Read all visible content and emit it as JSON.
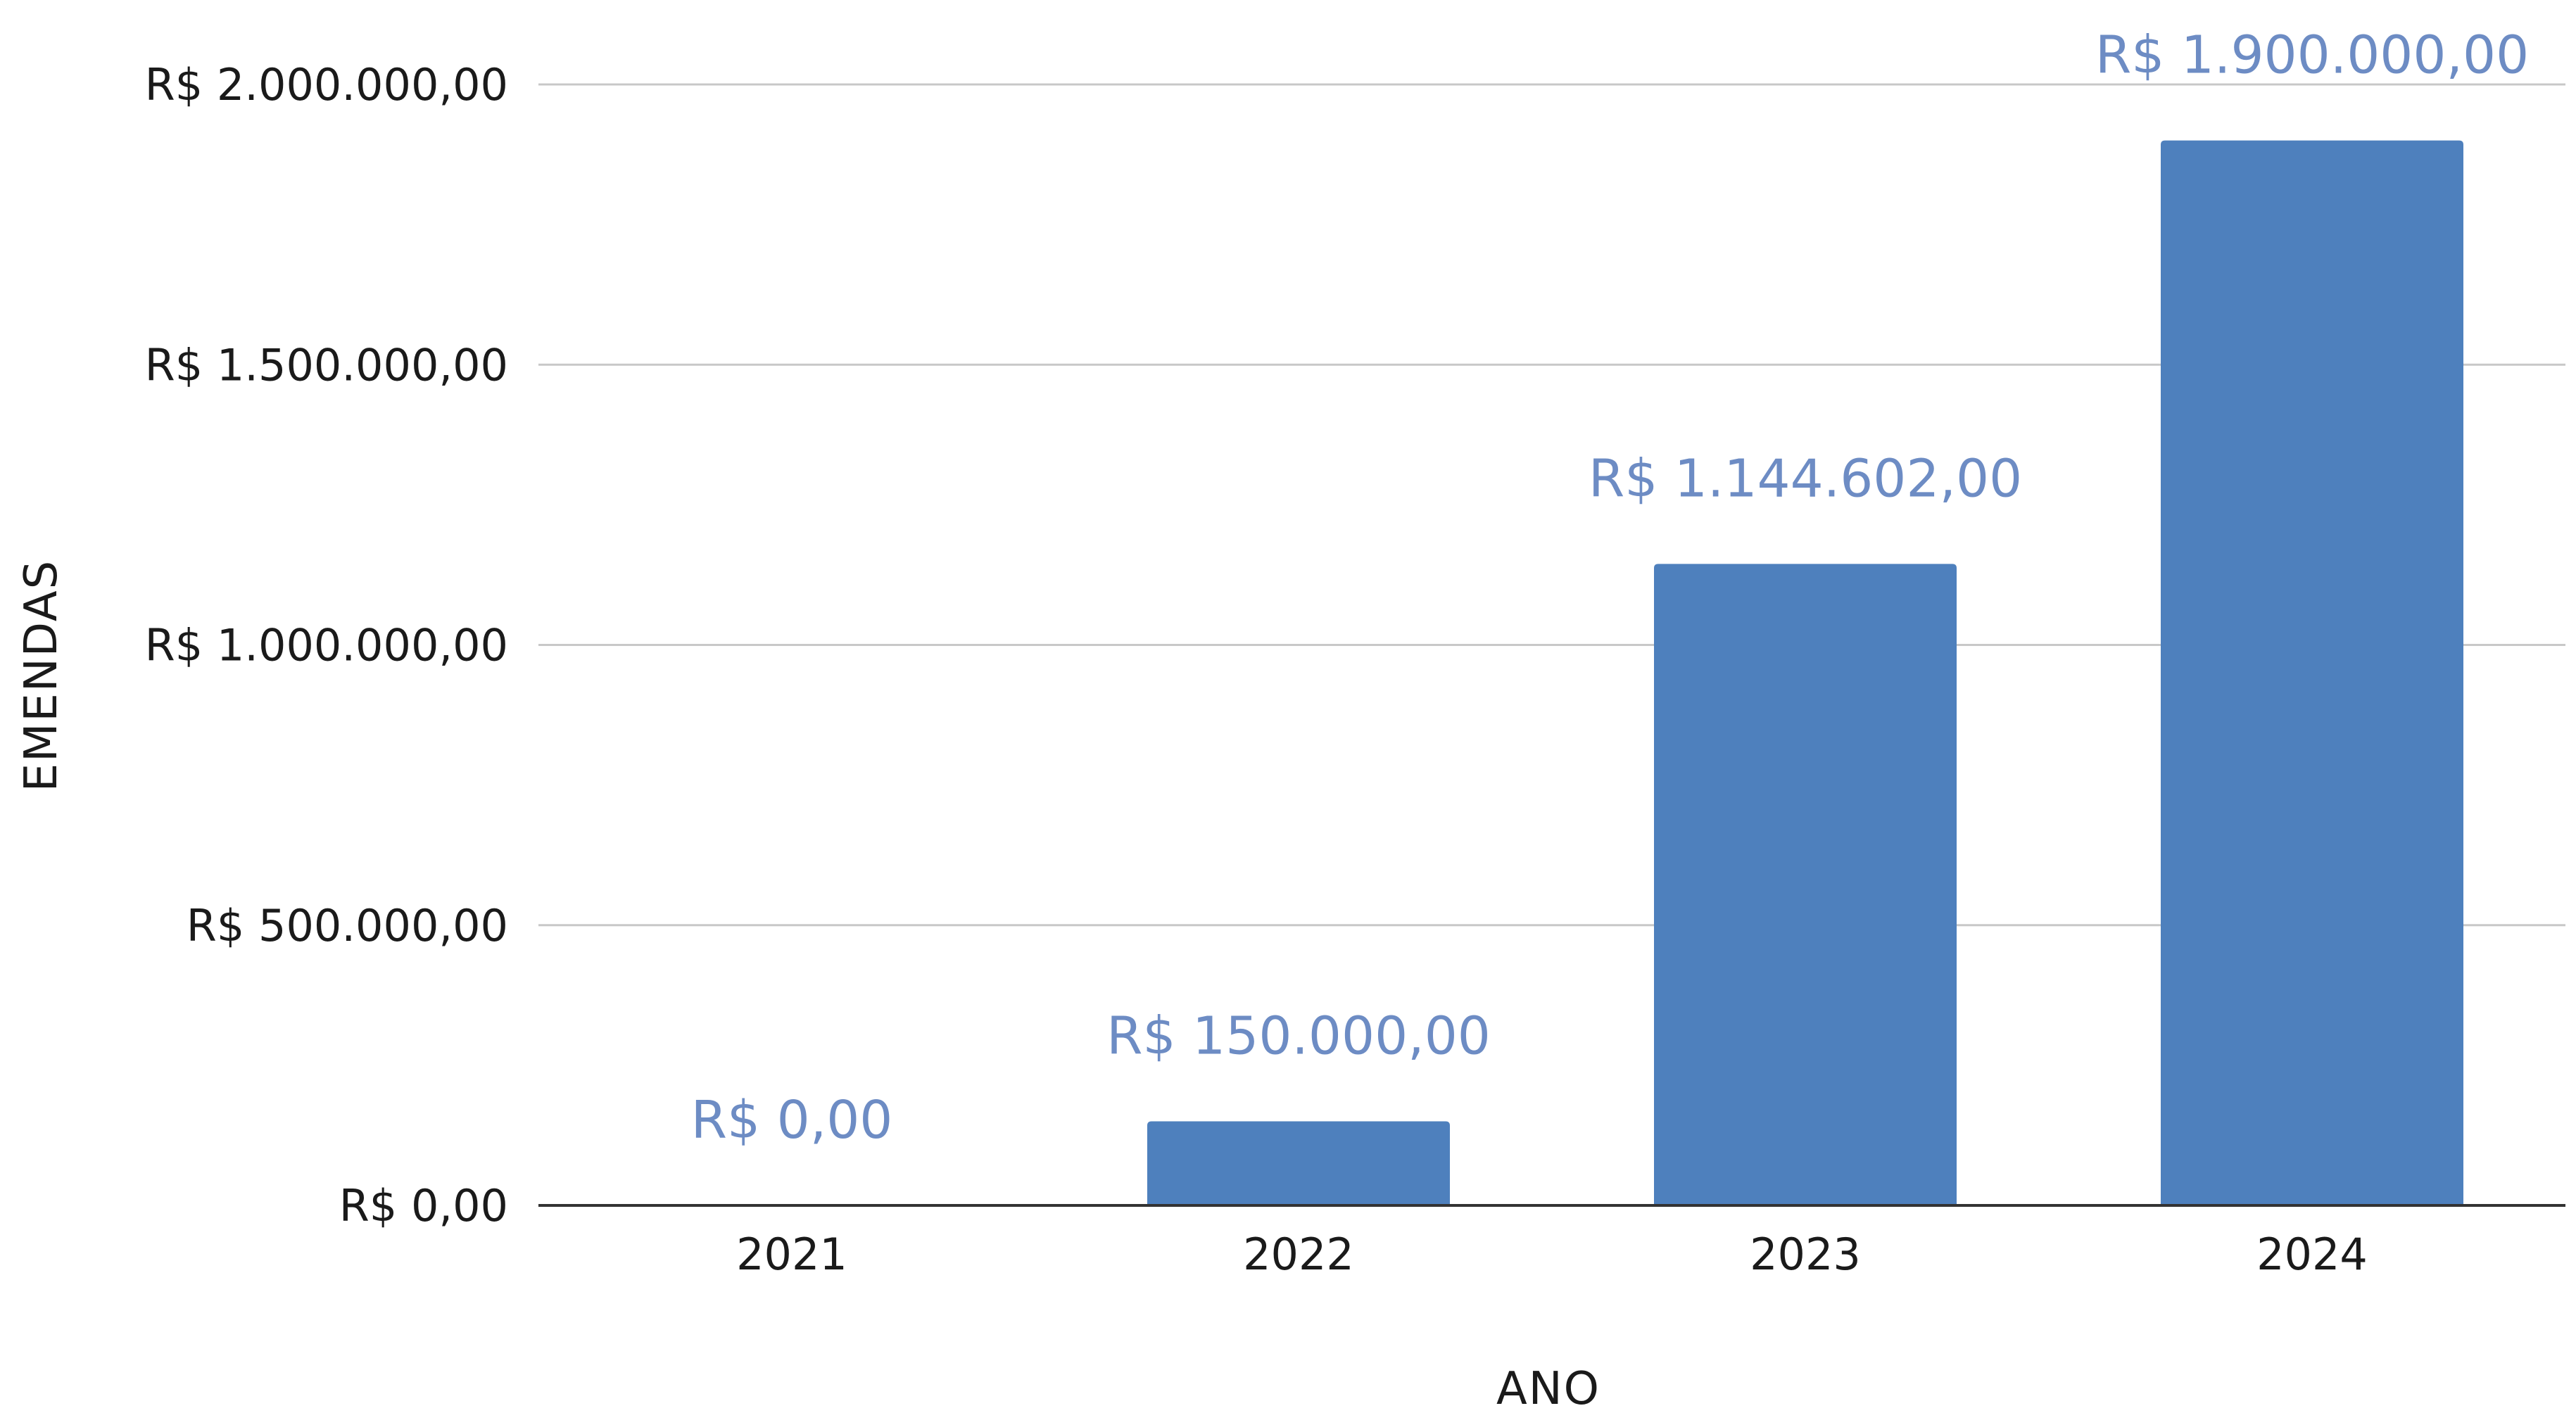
{
  "chart_data": {
    "type": "bar",
    "title": "",
    "xlabel": "ANO",
    "ylabel": "EMENDAS",
    "categories": [
      "2021",
      "2022",
      "2023",
      "2024"
    ],
    "values": [
      0,
      150000,
      1144602,
      1900000
    ],
    "data_labels": [
      "R$ 0,00",
      "R$ 150.000,00",
      "R$ 1.144.602,00",
      "R$ 1.900.000,00"
    ],
    "ylim": [
      0,
      2000000
    ],
    "yticks": [
      0,
      500000,
      1000000,
      1500000,
      2000000
    ],
    "ytick_labels": [
      "R$ 0,00",
      "R$ 500.000,00",
      "R$ 1.000.000,00",
      "R$ 1.500.000,00",
      "R$ 2.000.000,00"
    ],
    "grid": true,
    "legend": "none",
    "bar_color": "#4e80bd",
    "label_color": "#6d8cc4"
  }
}
